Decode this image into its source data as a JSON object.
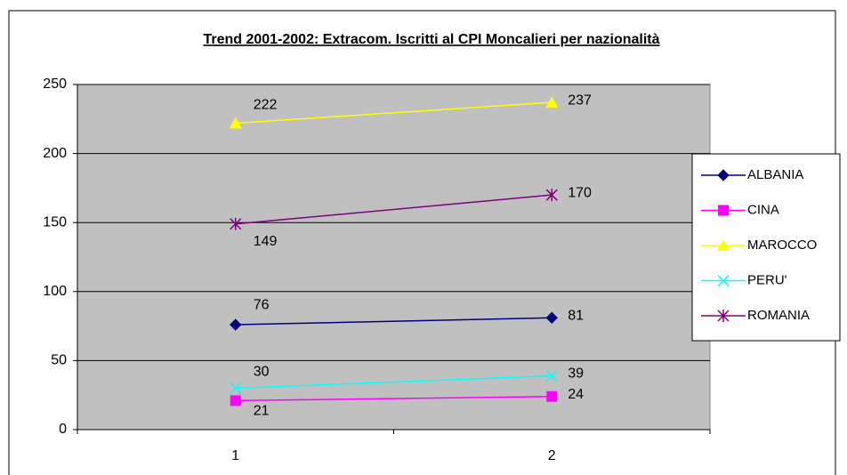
{
  "chart_data": {
    "type": "line",
    "title": "Trend 2001-2002: Extracom. Iscritti al CPI Moncalieri per nazionalità",
    "categories": [
      "1",
      "2"
    ],
    "series": [
      {
        "name": "ALBANIA",
        "color": "#000080",
        "marker": "diamond",
        "values": [
          76,
          81
        ]
      },
      {
        "name": "CINA",
        "color": "#ff00ff",
        "marker": "square",
        "values": [
          21,
          24
        ]
      },
      {
        "name": "MAROCCO",
        "color": "#ffff00",
        "marker": "triangle",
        "values": [
          222,
          237
        ]
      },
      {
        "name": "PERU'",
        "color": "#00ffff",
        "marker": "x",
        "values": [
          30,
          39
        ]
      },
      {
        "name": "ROMANIA",
        "color": "#800080",
        "marker": "asterisk",
        "values": [
          149,
          170
        ]
      }
    ],
    "ylim": [
      0,
      250
    ],
    "yticks": [
      0,
      50,
      100,
      150,
      200,
      250
    ],
    "grid": true,
    "legend": "right",
    "plot_background": "#c0c0c0"
  }
}
